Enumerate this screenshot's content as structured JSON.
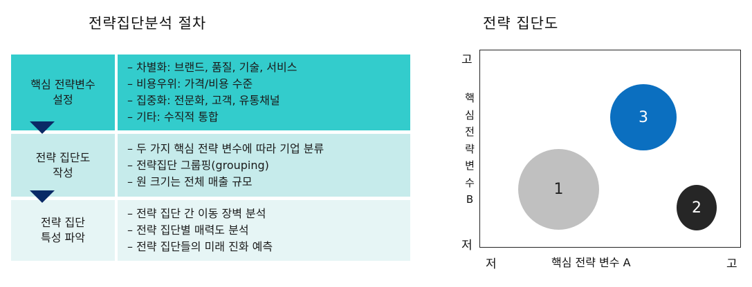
{
  "left_title": "전략집단분석 절차",
  "right_title": "전략 집단도",
  "steps": [
    {
      "label_line1": "핵심 전략변수",
      "label_line2": "설정",
      "items": [
        "– 차별화: 브랜드, 품질, 기술, 서비스",
        "– 비용우위: 가격/비용 수준",
        "– 집중화: 전문화, 고객, 유통채널",
        "– 기타: 수직적 통합"
      ]
    },
    {
      "label_line1": "전략 집단도",
      "label_line2": "작성",
      "items": [
        "– 두 가지 핵심 전략 변수에 따라 기업 분류",
        "– 전략집단 그룹핑(grouping)",
        "– 원 크기는 전체 매출 규모"
      ]
    },
    {
      "label_line1": "전략 집단",
      "label_line2": "특성 파악",
      "items": [
        "– 전략 집단 간 이동 장벽 분석",
        "– 전략 집단별 매력도 분석",
        "– 전략 집단들의 미래 진화 예측"
      ]
    }
  ],
  "matrix": {
    "y_high": "고",
    "y_low": "저",
    "x_low": "저",
    "x_high": "고",
    "x_label": "핵심 전략 변수 A",
    "y_label": "핵심전략변수B",
    "bubbles": [
      {
        "label": "1",
        "color": "#c0c0c0",
        "text_color": "#222222"
      },
      {
        "label": "2",
        "color": "#262626",
        "text_color": "#ffffff"
      },
      {
        "label": "3",
        "color": "#0b6fc0",
        "text_color": "#ffffff"
      }
    ]
  }
}
